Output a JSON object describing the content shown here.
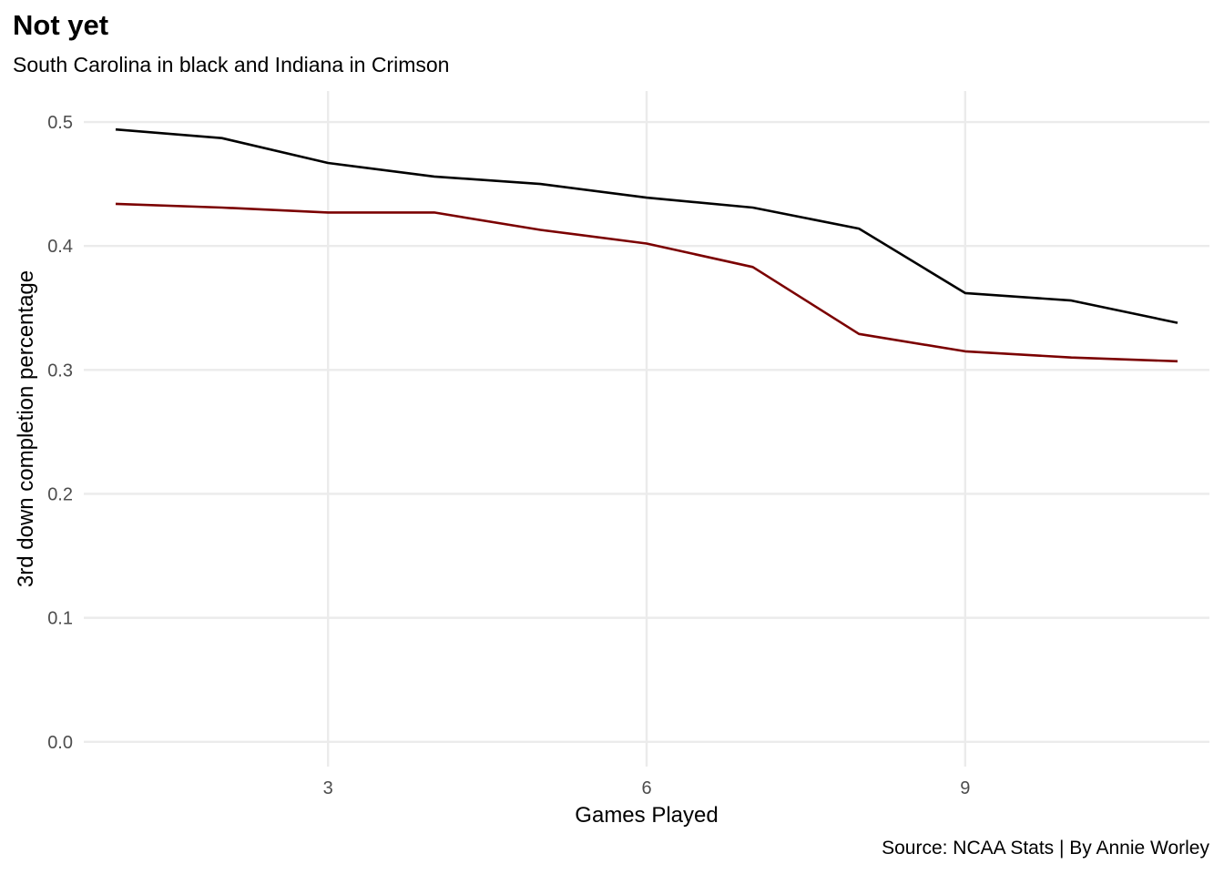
{
  "chart_data": {
    "type": "line",
    "title": "Not yet",
    "subtitle": "South Carolina in black and Indiana in Crimson",
    "caption": "Source: NCAA Stats | By Annie Worley",
    "xlabel": "Games Played",
    "ylabel": "3rd down completion percentage",
    "xlim": [
      0.7,
      11.3
    ],
    "ylim": [
      -0.02,
      0.525
    ],
    "x_ticks": [
      3,
      6,
      9
    ],
    "y_ticks": [
      0.0,
      0.1,
      0.2,
      0.3,
      0.4,
      0.5
    ],
    "y_tick_labels": [
      "0.0",
      "0.1",
      "0.2",
      "0.3",
      "0.4",
      "0.5"
    ],
    "x_tick_labels": [
      "3",
      "6",
      "9"
    ],
    "grid": true,
    "legend": "none",
    "x": [
      1,
      2,
      3,
      4,
      5,
      6,
      7,
      8,
      9,
      10,
      11
    ],
    "series": [
      {
        "color": "#000000",
        "values": [
          0.494,
          0.487,
          0.467,
          0.456,
          0.45,
          0.439,
          0.431,
          0.414,
          0.362,
          0.356,
          0.338
        ]
      },
      {
        "color": "#7b0000",
        "values": [
          0.434,
          0.431,
          0.427,
          0.427,
          0.413,
          0.402,
          0.383,
          0.329,
          0.315,
          0.31,
          0.307
        ]
      }
    ],
    "grid_color": "#ebebeb"
  }
}
